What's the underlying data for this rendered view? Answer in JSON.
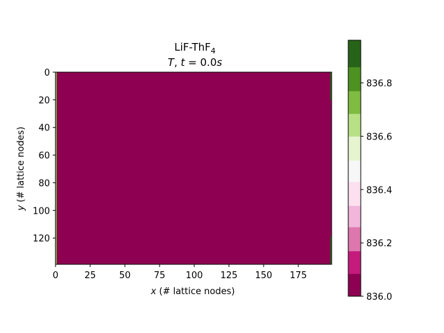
{
  "chart_data": {
    "type": "heatmap",
    "title": {
      "line1_main": "LiF-ThF",
      "line1_sub": "4",
      "line2_var": "T",
      "line2_mid": ", ",
      "line2_tvar": "t",
      "line2_eq": " = 0.0",
      "line2_unit": "s"
    },
    "xlabel": {
      "var": "x",
      "rest": " (# lattice nodes)"
    },
    "ylabel": {
      "var": "y",
      "rest": " (# lattice nodes)"
    },
    "xlim": [
      0,
      199
    ],
    "ylim": [
      0,
      139
    ],
    "y_inverted": true,
    "x_ticks": [
      0,
      25,
      50,
      75,
      100,
      125,
      150,
      175
    ],
    "y_ticks": [
      0,
      20,
      40,
      60,
      80,
      100,
      120
    ],
    "field_value": 836.0,
    "edge_patches": [
      {
        "x0": 0,
        "x1": 1,
        "y0": 0,
        "y1": 139,
        "value": 836.7
      },
      {
        "x0": 198,
        "x1": 199,
        "y0": 0,
        "y1": 20,
        "value": 836.95
      },
      {
        "x0": 198,
        "x1": 199,
        "y0": 119,
        "y1": 139,
        "value": 836.95
      }
    ],
    "colorbar": {
      "vmin": 836.0,
      "vmax": 836.96,
      "levels": [
        836.0,
        836.085,
        836.17,
        836.26,
        836.34,
        836.43,
        836.51,
        836.6,
        836.685,
        836.77,
        836.86,
        836.96
      ],
      "colors": [
        "#8e0152",
        "#c51b7d",
        "#de77ae",
        "#f1b6da",
        "#fde0ef",
        "#f7f7f7",
        "#e6f5d0",
        "#b8e186",
        "#7fbc41",
        "#4d9221",
        "#276419"
      ],
      "ticks": [
        836.0,
        836.2,
        836.4,
        836.6,
        836.8
      ],
      "tick_labels": [
        "836.0",
        "836.2",
        "836.4",
        "836.6",
        "836.8"
      ]
    },
    "grid": false,
    "legend": "none"
  }
}
